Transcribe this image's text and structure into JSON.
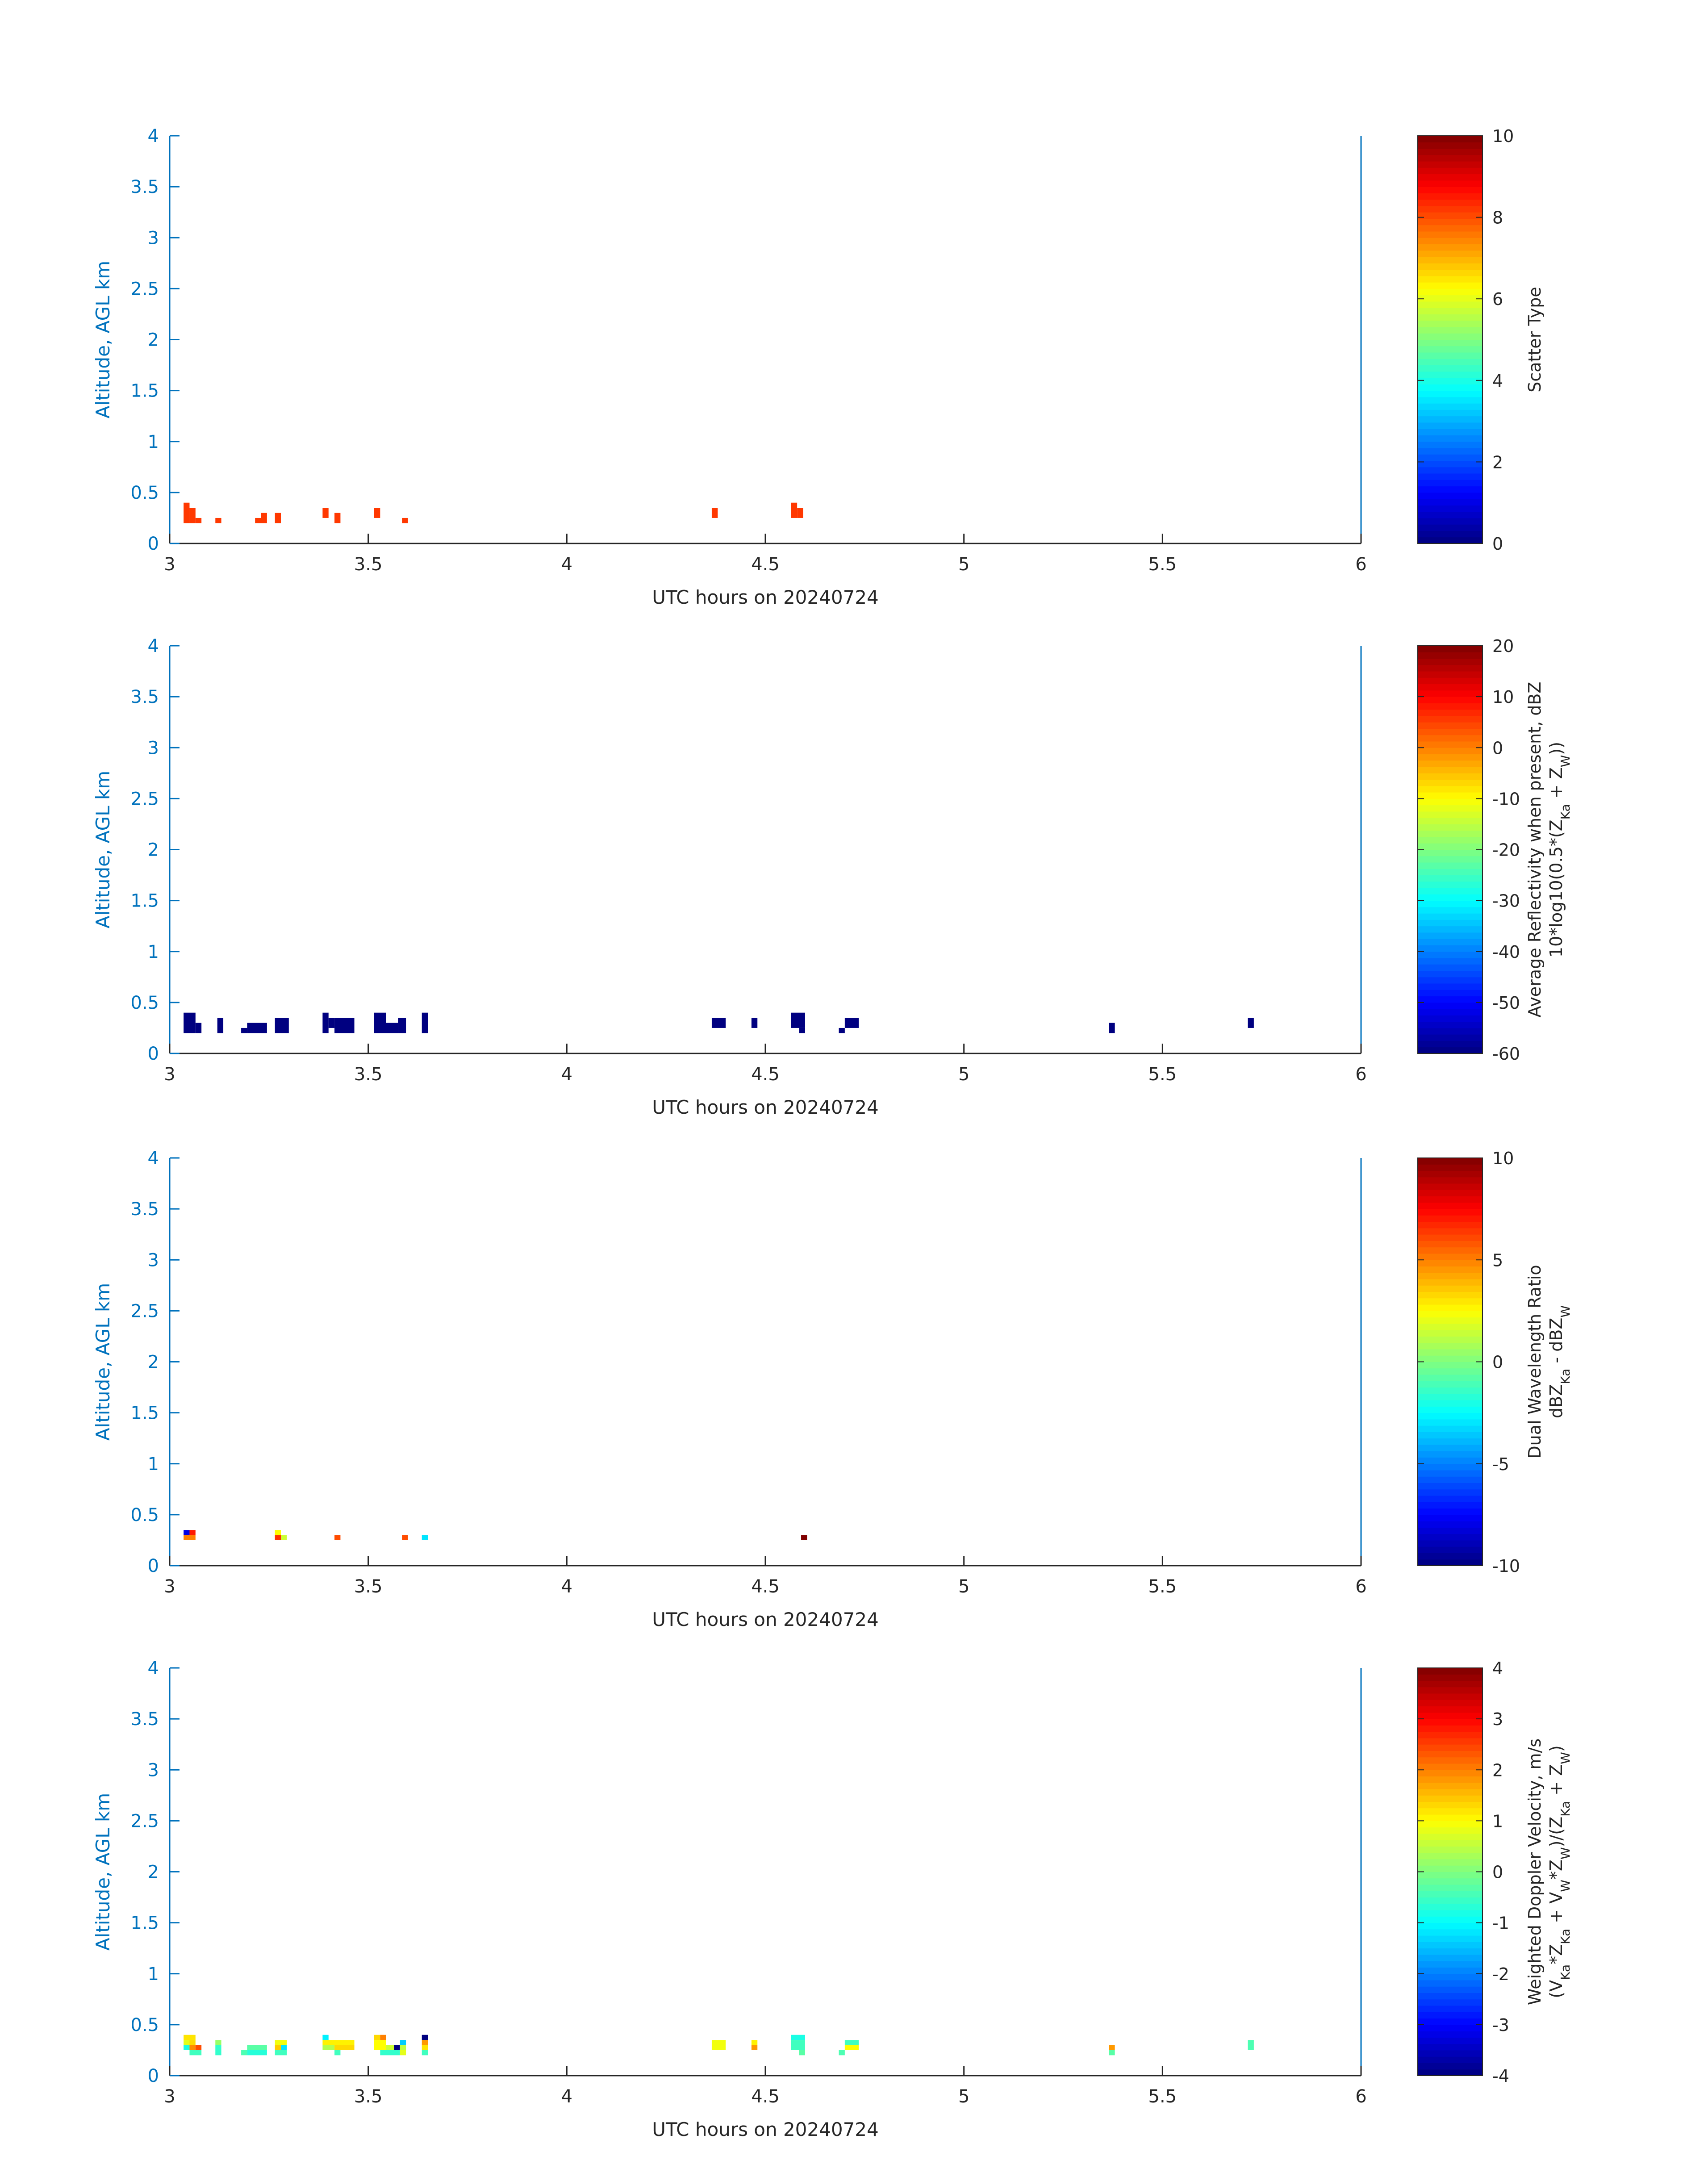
{
  "figure": {
    "x_tick_labels": [
      "3",
      "3.5",
      "4",
      "4.5",
      "5",
      "5.5",
      "6"
    ],
    "y_tick_labels": [
      "0",
      "0.5",
      "1",
      "1.5",
      "2",
      "2.5",
      "3",
      "3.5",
      "4"
    ]
  },
  "chart_data": [
    {
      "type": "heatmap",
      "xlabel": "UTC hours on 20240724",
      "ylabel": "Altitude, AGL km",
      "xlim": [
        3,
        6
      ],
      "ylim": [
        0,
        4
      ],
      "x_ticks": [
        3,
        3.5,
        4,
        4.5,
        5,
        5.5,
        6
      ],
      "y_ticks": [
        0,
        0.5,
        1,
        1.5,
        2,
        2.5,
        3,
        3.5,
        4
      ],
      "colorbar": {
        "label": [
          "Scatter Type"
        ],
        "clim": [
          0,
          10
        ],
        "ticks": [
          0,
          2,
          4,
          6,
          8,
          10
        ],
        "colormap": "jet"
      },
      "cells": [
        {
          "x0": 3.035,
          "x1": 3.05,
          "y0": 0.2,
          "y1": 0.4,
          "v": 8.2
        },
        {
          "x0": 3.05,
          "x1": 3.065,
          "y0": 0.2,
          "y1": 0.35,
          "v": 8.2
        },
        {
          "x0": 3.065,
          "x1": 3.08,
          "y0": 0.2,
          "y1": 0.25,
          "v": 8.2
        },
        {
          "x0": 3.115,
          "x1": 3.13,
          "y0": 0.2,
          "y1": 0.25,
          "v": 8.2
        },
        {
          "x0": 3.215,
          "x1": 3.23,
          "y0": 0.2,
          "y1": 0.25,
          "v": 8.2
        },
        {
          "x0": 3.23,
          "x1": 3.245,
          "y0": 0.2,
          "y1": 0.3,
          "v": 8.2
        },
        {
          "x0": 3.265,
          "x1": 3.28,
          "y0": 0.2,
          "y1": 0.3,
          "v": 8.2
        },
        {
          "x0": 3.385,
          "x1": 3.4,
          "y0": 0.25,
          "y1": 0.35,
          "v": 8.2
        },
        {
          "x0": 3.415,
          "x1": 3.43,
          "y0": 0.2,
          "y1": 0.3,
          "v": 8.2
        },
        {
          "x0": 3.515,
          "x1": 3.53,
          "y0": 0.25,
          "y1": 0.35,
          "v": 8.2
        },
        {
          "x0": 3.585,
          "x1": 3.6,
          "y0": 0.2,
          "y1": 0.25,
          "v": 8.2
        },
        {
          "x0": 4.365,
          "x1": 4.38,
          "y0": 0.25,
          "y1": 0.35,
          "v": 8.2
        },
        {
          "x0": 4.565,
          "x1": 4.58,
          "y0": 0.25,
          "y1": 0.4,
          "v": 8.2
        },
        {
          "x0": 4.58,
          "x1": 4.595,
          "y0": 0.25,
          "y1": 0.35,
          "v": 8.2
        }
      ]
    },
    {
      "type": "heatmap",
      "xlabel": "UTC hours on 20240724",
      "ylabel": "Altitude, AGL km",
      "xlim": [
        3,
        6
      ],
      "ylim": [
        0,
        4
      ],
      "x_ticks": [
        3,
        3.5,
        4,
        4.5,
        5,
        5.5,
        6
      ],
      "y_ticks": [
        0,
        0.5,
        1,
        1.5,
        2,
        2.5,
        3,
        3.5,
        4
      ],
      "colorbar": {
        "label": [
          "Average Reflectivity when present, dBZ",
          "10*log10(0.5*(Z_Ka + Z_W))"
        ],
        "clim": [
          -60,
          20
        ],
        "ticks": [
          -60,
          -50,
          -40,
          -30,
          -20,
          -10,
          0,
          10,
          20
        ],
        "colormap": "jet"
      },
      "cells": [
        {
          "x0": 3.035,
          "x1": 3.065,
          "y0": 0.2,
          "y1": 0.4,
          "v": -60
        },
        {
          "x0": 3.065,
          "x1": 3.08,
          "y0": 0.2,
          "y1": 0.3,
          "v": -60
        },
        {
          "x0": 3.12,
          "x1": 3.135,
          "y0": 0.2,
          "y1": 0.35,
          "v": -60
        },
        {
          "x0": 3.18,
          "x1": 3.195,
          "y0": 0.2,
          "y1": 0.25,
          "v": -60
        },
        {
          "x0": 3.195,
          "x1": 3.245,
          "y0": 0.2,
          "y1": 0.3,
          "v": -60
        },
        {
          "x0": 3.265,
          "x1": 3.3,
          "y0": 0.2,
          "y1": 0.35,
          "v": -60
        },
        {
          "x0": 3.385,
          "x1": 3.4,
          "y0": 0.2,
          "y1": 0.4,
          "v": -60
        },
        {
          "x0": 3.4,
          "x1": 3.415,
          "y0": 0.25,
          "y1": 0.35,
          "v": -60
        },
        {
          "x0": 3.415,
          "x1": 3.465,
          "y0": 0.2,
          "y1": 0.35,
          "v": -60
        },
        {
          "x0": 3.515,
          "x1": 3.545,
          "y0": 0.2,
          "y1": 0.4,
          "v": -60
        },
        {
          "x0": 3.545,
          "x1": 3.575,
          "y0": 0.2,
          "y1": 0.3,
          "v": -60
        },
        {
          "x0": 3.575,
          "x1": 3.595,
          "y0": 0.2,
          "y1": 0.35,
          "v": -60
        },
        {
          "x0": 3.635,
          "x1": 3.65,
          "y0": 0.2,
          "y1": 0.4,
          "v": -60
        },
        {
          "x0": 4.365,
          "x1": 4.4,
          "y0": 0.25,
          "y1": 0.35,
          "v": -60
        },
        {
          "x0": 4.465,
          "x1": 4.48,
          "y0": 0.25,
          "y1": 0.35,
          "v": -60
        },
        {
          "x0": 4.565,
          "x1": 4.6,
          "y0": 0.25,
          "y1": 0.4,
          "v": -60
        },
        {
          "x0": 4.585,
          "x1": 4.6,
          "y0": 0.2,
          "y1": 0.25,
          "v": -60
        },
        {
          "x0": 4.685,
          "x1": 4.7,
          "y0": 0.2,
          "y1": 0.25,
          "v": -60
        },
        {
          "x0": 4.7,
          "x1": 4.735,
          "y0": 0.25,
          "y1": 0.35,
          "v": -60
        },
        {
          "x0": 5.365,
          "x1": 5.38,
          "y0": 0.2,
          "y1": 0.3,
          "v": -60
        },
        {
          "x0": 5.715,
          "x1": 5.73,
          "y0": 0.25,
          "y1": 0.35,
          "v": -60
        }
      ]
    },
    {
      "type": "heatmap",
      "xlabel": "UTC hours on 20240724",
      "ylabel": "Altitude, AGL km",
      "xlim": [
        3,
        6
      ],
      "ylim": [
        0,
        4
      ],
      "x_ticks": [
        3,
        3.5,
        4,
        4.5,
        5,
        5.5,
        6
      ],
      "y_ticks": [
        0,
        0.5,
        1,
        1.5,
        2,
        2.5,
        3,
        3.5,
        4
      ],
      "colorbar": {
        "label": [
          "Dual Wavelength Ratio",
          "dBZ_Ka - dBZ_W"
        ],
        "clim": [
          -10,
          10
        ],
        "ticks": [
          -10,
          -5,
          0,
          5,
          10
        ],
        "colormap": "jet"
      },
      "cells": [
        {
          "x0": 3.035,
          "x1": 3.05,
          "y0": 0.3,
          "y1": 0.35,
          "v": -8.0
        },
        {
          "x0": 3.05,
          "x1": 3.065,
          "y0": 0.3,
          "y1": 0.35,
          "v": 7.0
        },
        {
          "x0": 3.035,
          "x1": 3.065,
          "y0": 0.25,
          "y1": 0.3,
          "v": 5.0
        },
        {
          "x0": 3.265,
          "x1": 3.28,
          "y0": 0.3,
          "y1": 0.35,
          "v": 2.5
        },
        {
          "x0": 3.265,
          "x1": 3.28,
          "y0": 0.25,
          "y1": 0.3,
          "v": 6.5
        },
        {
          "x0": 3.28,
          "x1": 3.295,
          "y0": 0.25,
          "y1": 0.3,
          "v": 1.5
        },
        {
          "x0": 3.415,
          "x1": 3.43,
          "y0": 0.25,
          "y1": 0.3,
          "v": 6.0
        },
        {
          "x0": 3.585,
          "x1": 3.6,
          "y0": 0.25,
          "y1": 0.3,
          "v": 6.0
        },
        {
          "x0": 3.635,
          "x1": 3.65,
          "y0": 0.25,
          "y1": 0.3,
          "v": -3.0
        },
        {
          "x0": 4.59,
          "x1": 4.605,
          "y0": 0.25,
          "y1": 0.3,
          "v": 10
        }
      ]
    },
    {
      "type": "heatmap",
      "xlabel": "UTC hours on 20240724",
      "ylabel": "Altitude, AGL km",
      "xlim": [
        3,
        6
      ],
      "ylim": [
        0,
        4
      ],
      "x_ticks": [
        3,
        3.5,
        4,
        4.5,
        5,
        5.5,
        6
      ],
      "y_ticks": [
        0,
        0.5,
        1,
        1.5,
        2,
        2.5,
        3,
        3.5,
        4
      ],
      "colorbar": {
        "label": [
          "Weighted Doppler Velocity, m/s",
          "(V_Ka*Z_Ka + V_W*Z_W)/(Z_Ka + Z_W)"
        ],
        "clim": [
          -4,
          4
        ],
        "ticks": [
          -4,
          -3,
          -2,
          -1,
          0,
          1,
          2,
          3,
          4
        ],
        "colormap": "jet"
      },
      "cells": [
        {
          "x0": 3.035,
          "x1": 3.065,
          "y0": 0.35,
          "y1": 0.4,
          "v": 1.2
        },
        {
          "x0": 3.035,
          "x1": 3.05,
          "y0": 0.3,
          "y1": 0.35,
          "v": 0.8
        },
        {
          "x0": 3.05,
          "x1": 3.065,
          "y0": 0.3,
          "y1": 0.35,
          "v": 1.3
        },
        {
          "x0": 3.035,
          "x1": 3.05,
          "y0": 0.25,
          "y1": 0.3,
          "v": -0.8
        },
        {
          "x0": 3.05,
          "x1": 3.065,
          "y0": 0.25,
          "y1": 0.3,
          "v": 1.9
        },
        {
          "x0": 3.065,
          "x1": 3.08,
          "y0": 0.25,
          "y1": 0.3,
          "v": 2.4
        },
        {
          "x0": 3.05,
          "x1": 3.08,
          "y0": 0.2,
          "y1": 0.25,
          "v": -0.5
        },
        {
          "x0": 3.115,
          "x1": 3.13,
          "y0": 0.3,
          "y1": 0.35,
          "v": 0.2
        },
        {
          "x0": 3.115,
          "x1": 3.13,
          "y0": 0.2,
          "y1": 0.3,
          "v": -0.6
        },
        {
          "x0": 3.18,
          "x1": 3.195,
          "y0": 0.2,
          "y1": 0.25,
          "v": -0.4
        },
        {
          "x0": 3.195,
          "x1": 3.245,
          "y0": 0.25,
          "y1": 0.3,
          "v": -0.3
        },
        {
          "x0": 3.195,
          "x1": 3.245,
          "y0": 0.2,
          "y1": 0.25,
          "v": -0.7
        },
        {
          "x0": 3.265,
          "x1": 3.295,
          "y0": 0.3,
          "y1": 0.35,
          "v": 0.9
        },
        {
          "x0": 3.265,
          "x1": 3.28,
          "y0": 0.25,
          "y1": 0.3,
          "v": 1.4
        },
        {
          "x0": 3.28,
          "x1": 3.295,
          "y0": 0.25,
          "y1": 0.3,
          "v": -1.2
        },
        {
          "x0": 3.265,
          "x1": 3.295,
          "y0": 0.2,
          "y1": 0.25,
          "v": -0.5
        },
        {
          "x0": 3.385,
          "x1": 3.4,
          "y0": 0.35,
          "y1": 0.4,
          "v": -1.1
        },
        {
          "x0": 3.385,
          "x1": 3.465,
          "y0": 0.3,
          "y1": 0.35,
          "v": 1.1
        },
        {
          "x0": 3.385,
          "x1": 3.415,
          "y0": 0.25,
          "y1": 0.3,
          "v": 0.4
        },
        {
          "x0": 3.415,
          "x1": 3.465,
          "y0": 0.25,
          "y1": 0.3,
          "v": 1.3
        },
        {
          "x0": 3.415,
          "x1": 3.43,
          "y0": 0.2,
          "y1": 0.25,
          "v": -0.5
        },
        {
          "x0": 3.515,
          "x1": 3.53,
          "y0": 0.35,
          "y1": 0.4,
          "v": 1.3
        },
        {
          "x0": 3.53,
          "x1": 3.545,
          "y0": 0.35,
          "y1": 0.4,
          "v": 2.0
        },
        {
          "x0": 3.515,
          "x1": 3.545,
          "y0": 0.25,
          "y1": 0.35,
          "v": 1.0
        },
        {
          "x0": 3.545,
          "x1": 3.575,
          "y0": 0.25,
          "y1": 0.3,
          "v": 0.6
        },
        {
          "x0": 3.565,
          "x1": 3.58,
          "y0": 0.25,
          "y1": 0.3,
          "v": -4.0
        },
        {
          "x0": 3.58,
          "x1": 3.595,
          "y0": 0.3,
          "y1": 0.35,
          "v": -1.4
        },
        {
          "x0": 3.58,
          "x1": 3.595,
          "y0": 0.25,
          "y1": 0.3,
          "v": 0.5
        },
        {
          "x0": 3.53,
          "x1": 3.58,
          "y0": 0.2,
          "y1": 0.25,
          "v": -0.6
        },
        {
          "x0": 3.58,
          "x1": 3.595,
          "y0": 0.2,
          "y1": 0.25,
          "v": 0.8
        },
        {
          "x0": 3.635,
          "x1": 3.65,
          "y0": 0.35,
          "y1": 0.4,
          "v": -4.0
        },
        {
          "x0": 3.635,
          "x1": 3.65,
          "y0": 0.3,
          "y1": 0.35,
          "v": 1.8
        },
        {
          "x0": 3.635,
          "x1": 3.65,
          "y0": 0.25,
          "y1": 0.3,
          "v": 1.2
        },
        {
          "x0": 3.635,
          "x1": 3.65,
          "y0": 0.2,
          "y1": 0.25,
          "v": -0.5
        },
        {
          "x0": 4.365,
          "x1": 4.4,
          "y0": 0.25,
          "y1": 0.35,
          "v": 0.9
        },
        {
          "x0": 4.465,
          "x1": 4.48,
          "y0": 0.3,
          "y1": 0.35,
          "v": 1.1
        },
        {
          "x0": 4.465,
          "x1": 4.48,
          "y0": 0.25,
          "y1": 0.3,
          "v": 1.8
        },
        {
          "x0": 4.565,
          "x1": 4.6,
          "y0": 0.35,
          "y1": 0.4,
          "v": -0.8
        },
        {
          "x0": 4.565,
          "x1": 4.6,
          "y0": 0.25,
          "y1": 0.35,
          "v": -0.5
        },
        {
          "x0": 4.585,
          "x1": 4.6,
          "y0": 0.2,
          "y1": 0.25,
          "v": -0.3
        },
        {
          "x0": 4.685,
          "x1": 4.7,
          "y0": 0.2,
          "y1": 0.25,
          "v": -0.4
        },
        {
          "x0": 4.7,
          "x1": 4.735,
          "y0": 0.3,
          "y1": 0.35,
          "v": -0.5
        },
        {
          "x0": 4.7,
          "x1": 4.735,
          "y0": 0.25,
          "y1": 0.3,
          "v": 1.0
        },
        {
          "x0": 5.365,
          "x1": 5.38,
          "y0": 0.25,
          "y1": 0.3,
          "v": 1.8
        },
        {
          "x0": 5.365,
          "x1": 5.38,
          "y0": 0.2,
          "y1": 0.25,
          "v": -0.3
        },
        {
          "x0": 5.715,
          "x1": 5.73,
          "y0": 0.25,
          "y1": 0.35,
          "v": -0.4
        }
      ]
    }
  ]
}
